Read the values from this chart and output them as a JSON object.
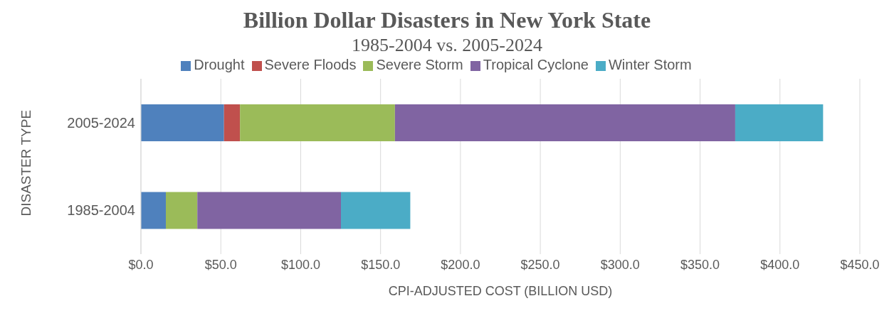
{
  "chart_data": {
    "type": "bar",
    "orientation": "horizontal",
    "stacked": true,
    "title": "Billion Dollar Disasters in New York State",
    "subtitle": "1985-2004 vs. 2005-2024",
    "xlabel": "CPI-ADJUSTED COST (BILLION USD)",
    "ylabel": "DISASTER TYPE",
    "categories": [
      "2005-2024",
      "1985-2004"
    ],
    "series": [
      {
        "name": "Drought",
        "color": "#4f81bd",
        "values": [
          52,
          15.6
        ]
      },
      {
        "name": "Severe Floods",
        "color": "#c0504d",
        "values": [
          10,
          null
        ]
      },
      {
        "name": "Severe Storm",
        "color": "#9bbb59",
        "values": [
          97,
          19.7
        ]
      },
      {
        "name": "Tropical Cyclone",
        "color": "#8064a2",
        "values": [
          213,
          89.9
        ]
      },
      {
        "name": "Winter Storm",
        "color": "#4bacc6",
        "values": [
          55,
          43.4
        ]
      }
    ],
    "xlim": [
      0,
      450
    ],
    "xticks": [
      {
        "value": 0,
        "label": "$0.0"
      },
      {
        "value": 50,
        "label": "$50.0"
      },
      {
        "value": 100,
        "label": "$100.0"
      },
      {
        "value": 150,
        "label": "$150.0"
      },
      {
        "value": 200,
        "label": "$200.0"
      },
      {
        "value": 250,
        "label": "$250.0"
      },
      {
        "value": 300,
        "label": "$300.0"
      },
      {
        "value": 350,
        "label": "$350.0"
      },
      {
        "value": 400,
        "label": "$400.0"
      },
      {
        "value": 450,
        "label": "$450.0"
      }
    ],
    "grid": "x",
    "legend": "top"
  }
}
